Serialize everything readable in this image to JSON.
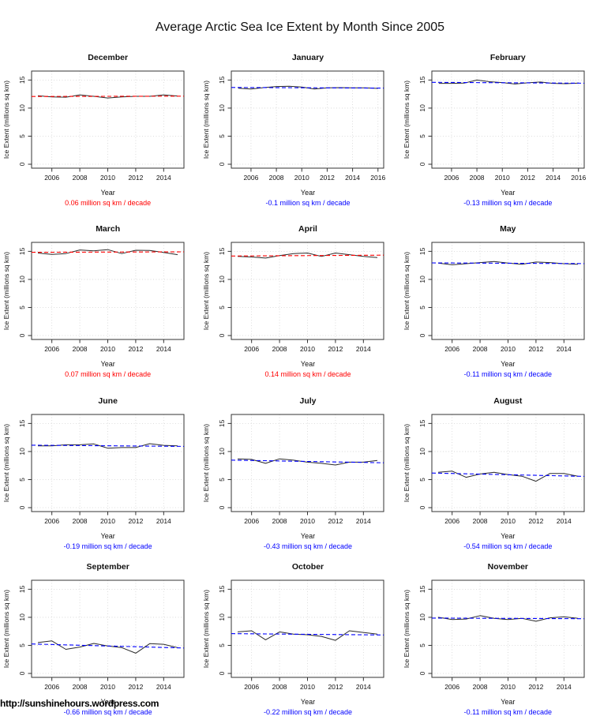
{
  "page_title": "Average Arctic Sea Ice Extent by Month Since 2005",
  "watermark": "http://sunshinehours.wordpress.com",
  "axis": {
    "xlabel": "Year",
    "ylabel": "Ice Extent (millions sq km)",
    "yticks": [
      0,
      5,
      10,
      15
    ],
    "ylim": [
      -0.7,
      16.6
    ]
  },
  "colors": {
    "positive_trend": "#ff0000",
    "negative_trend": "#0000ff",
    "data_line": "#2a2a2a",
    "grid": "#d4d4d4",
    "box": "#333333"
  },
  "chart_data": [
    {
      "type": "line",
      "month": "December",
      "xlabel": "Year",
      "x": [
        2005,
        2006,
        2007,
        2008,
        2009,
        2010,
        2011,
        2012,
        2013,
        2014,
        2015
      ],
      "y": [
        12.2,
        12.0,
        11.95,
        12.35,
        12.1,
        11.8,
        12.0,
        12.1,
        12.1,
        12.35,
        12.15
      ],
      "xticks": [
        2006,
        2008,
        2010,
        2012,
        2014
      ],
      "xlim": [
        2004.55,
        2015.45
      ],
      "trend_per_decade": 0.06,
      "trend_label": "0.06 million sq km / decade",
      "trend_color": "#ff0000"
    },
    {
      "type": "line",
      "month": "January",
      "xlabel": "Year",
      "x": [
        2005,
        2006,
        2007,
        2008,
        2009,
        2010,
        2011,
        2012,
        2013,
        2014,
        2015,
        2016
      ],
      "y": [
        13.55,
        13.4,
        13.65,
        13.85,
        13.9,
        13.75,
        13.4,
        13.6,
        13.65,
        13.6,
        13.6,
        13.5
      ],
      "xticks": [
        2006,
        2008,
        2010,
        2012,
        2014,
        2016
      ],
      "xlim": [
        2004.45,
        2016.45
      ],
      "trend_per_decade": -0.1,
      "trend_label": "-0.1 million sq km / decade",
      "trend_color": "#0000ff"
    },
    {
      "type": "line",
      "month": "February",
      "xlabel": "Year",
      "x": [
        2005,
        2006,
        2007,
        2008,
        2009,
        2010,
        2011,
        2012,
        2013,
        2014,
        2015,
        2016
      ],
      "y": [
        14.4,
        14.4,
        14.45,
        15.0,
        14.7,
        14.55,
        14.3,
        14.5,
        14.65,
        14.4,
        14.35,
        14.45
      ],
      "xticks": [
        2006,
        2008,
        2010,
        2012,
        2014,
        2016
      ],
      "xlim": [
        2004.45,
        2016.45
      ],
      "trend_per_decade": -0.13,
      "trend_label": "-0.13 million sq km / decade",
      "trend_color": "#0000ff"
    },
    {
      "type": "line",
      "month": "March",
      "xlabel": "Year",
      "x": [
        2005,
        2006,
        2007,
        2008,
        2009,
        2010,
        2011,
        2012,
        2013,
        2014,
        2015
      ],
      "y": [
        14.7,
        14.45,
        14.6,
        15.25,
        15.1,
        15.3,
        14.6,
        15.2,
        15.15,
        14.8,
        14.4
      ],
      "xticks": [
        2006,
        2008,
        2010,
        2012,
        2014
      ],
      "xlim": [
        2004.55,
        2015.45
      ],
      "trend_per_decade": 0.07,
      "trend_label": "0.07 million sq km / decade",
      "trend_color": "#ff0000"
    },
    {
      "type": "line",
      "month": "April",
      "xlabel": "Year",
      "x": [
        2005,
        2006,
        2007,
        2008,
        2009,
        2010,
        2011,
        2012,
        2013,
        2014,
        2015
      ],
      "y": [
        14.1,
        14.0,
        13.8,
        14.25,
        14.6,
        14.7,
        14.1,
        14.7,
        14.4,
        14.1,
        13.9
      ],
      "xticks": [
        2006,
        2008,
        2010,
        2012,
        2014
      ],
      "xlim": [
        2004.55,
        2015.45
      ],
      "trend_per_decade": 0.14,
      "trend_label": "0.14 million sq km / decade",
      "trend_color": "#ff0000"
    },
    {
      "type": "line",
      "month": "May",
      "xlabel": "Year",
      "x": [
        2005,
        2006,
        2007,
        2008,
        2009,
        2010,
        2011,
        2012,
        2013,
        2014,
        2015
      ],
      "y": [
        12.9,
        12.6,
        12.8,
        13.0,
        13.2,
        12.9,
        12.7,
        13.1,
        13.0,
        12.8,
        12.7
      ],
      "xticks": [
        2006,
        2008,
        2010,
        2012,
        2014
      ],
      "xlim": [
        2004.55,
        2015.45
      ],
      "trend_per_decade": -0.11,
      "trend_label": "-0.11 million sq km / decade",
      "trend_color": "#0000ff"
    },
    {
      "type": "line",
      "month": "June",
      "xlabel": "Year",
      "x": [
        2005,
        2006,
        2007,
        2008,
        2009,
        2010,
        2011,
        2012,
        2013,
        2014,
        2015
      ],
      "y": [
        11.0,
        11.0,
        11.2,
        11.2,
        11.35,
        10.6,
        10.7,
        10.7,
        11.4,
        11.1,
        11.0
      ],
      "xticks": [
        2006,
        2008,
        2010,
        2012,
        2014
      ],
      "xlim": [
        2004.55,
        2015.45
      ],
      "trend_per_decade": -0.19,
      "trend_label": "-0.19 million sq km / decade",
      "trend_color": "#0000ff"
    },
    {
      "type": "line",
      "month": "July",
      "xlabel": "Year",
      "x": [
        2005,
        2006,
        2007,
        2008,
        2009,
        2010,
        2011,
        2012,
        2013,
        2014,
        2015
      ],
      "y": [
        8.7,
        8.6,
        7.9,
        8.7,
        8.45,
        8.1,
        7.9,
        7.6,
        8.1,
        8.1,
        8.4
      ],
      "xticks": [
        2006,
        2008,
        2010,
        2012,
        2014
      ],
      "xlim": [
        2004.55,
        2015.45
      ],
      "trend_per_decade": -0.43,
      "trend_label": "-0.43 million sq km / decade",
      "trend_color": "#0000ff"
    },
    {
      "type": "line",
      "month": "August",
      "xlabel": "Year",
      "x": [
        2005,
        2006,
        2007,
        2008,
        2009,
        2010,
        2011,
        2012,
        2013,
        2014,
        2015
      ],
      "y": [
        6.3,
        6.5,
        5.4,
        6.0,
        6.3,
        5.9,
        5.6,
        4.7,
        6.1,
        6.1,
        5.6
      ],
      "xticks": [
        2006,
        2008,
        2010,
        2012,
        2014
      ],
      "xlim": [
        2004.55,
        2015.45
      ],
      "trend_per_decade": -0.54,
      "trend_label": "-0.54 million sq km / decade",
      "trend_color": "#0000ff"
    },
    {
      "type": "line",
      "month": "September",
      "xlabel": "Year",
      "x": [
        2005,
        2006,
        2007,
        2008,
        2009,
        2010,
        2011,
        2012,
        2013,
        2014,
        2015
      ],
      "y": [
        5.5,
        5.8,
        4.3,
        4.7,
        5.35,
        4.9,
        4.6,
        3.6,
        5.3,
        5.2,
        4.6
      ],
      "xticks": [
        2006,
        2008,
        2010,
        2012,
        2014
      ],
      "xlim": [
        2004.55,
        2015.45
      ],
      "trend_per_decade": -0.66,
      "trend_label": "-0.66 million sq km / decade",
      "trend_color": "#0000ff"
    },
    {
      "type": "line",
      "month": "October",
      "xlabel": "Year",
      "x": [
        2005,
        2006,
        2007,
        2008,
        2009,
        2010,
        2011,
        2012,
        2013,
        2014,
        2015
      ],
      "y": [
        7.4,
        7.6,
        6.0,
        7.4,
        7.0,
        6.9,
        6.6,
        5.9,
        7.6,
        7.3,
        7.0
      ],
      "xticks": [
        2006,
        2008,
        2010,
        2012,
        2014
      ],
      "xlim": [
        2004.55,
        2015.45
      ],
      "trend_per_decade": -0.22,
      "trend_label": "-0.22 million sq km / decade",
      "trend_color": "#0000ff"
    },
    {
      "type": "line",
      "month": "November",
      "xlabel": "Year",
      "x": [
        2005,
        2006,
        2007,
        2008,
        2009,
        2010,
        2011,
        2012,
        2013,
        2014,
        2015
      ],
      "y": [
        10.0,
        9.6,
        9.7,
        10.3,
        9.8,
        9.6,
        9.8,
        9.3,
        9.9,
        10.1,
        9.8
      ],
      "xticks": [
        2006,
        2008,
        2010,
        2012,
        2014
      ],
      "xlim": [
        2004.55,
        2015.45
      ],
      "trend_per_decade": -0.11,
      "trend_label": "-0.11 million sq km / decade",
      "trend_color": "#0000ff"
    }
  ]
}
